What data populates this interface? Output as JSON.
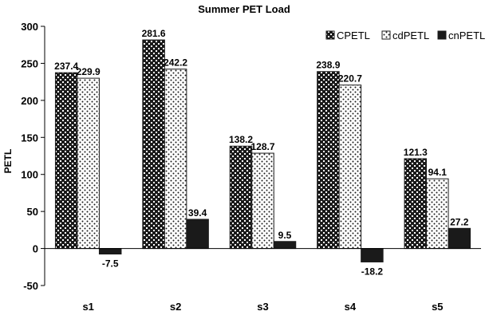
{
  "chart_data": {
    "type": "bar",
    "title": "Summer PET Load",
    "ylabel": "PETL",
    "xlabel": "",
    "categories": [
      "s1",
      "s2",
      "s3",
      "s4",
      "s5"
    ],
    "series": [
      {
        "name": "CPETL",
        "values": [
          237.4,
          281.6,
          138.2,
          238.9,
          121.3
        ],
        "pattern": "checker"
      },
      {
        "name": "cdPETL",
        "values": [
          229.9,
          242.2,
          128.7,
          220.7,
          94.1
        ],
        "pattern": "dots"
      },
      {
        "name": "cnPETL",
        "values": [
          -7.5,
          39.4,
          9.5,
          -18.2,
          27.2
        ],
        "pattern": "solid"
      }
    ],
    "ylim": [
      -50,
      300
    ],
    "yticks": [
      -50,
      0,
      50,
      100,
      150,
      200,
      250,
      300
    ],
    "grid": false,
    "legend_position": "top-right",
    "colors": {
      "bar_dark": "#1a1a1a",
      "bar_light": "#ffffff",
      "axis": "#000000"
    }
  }
}
